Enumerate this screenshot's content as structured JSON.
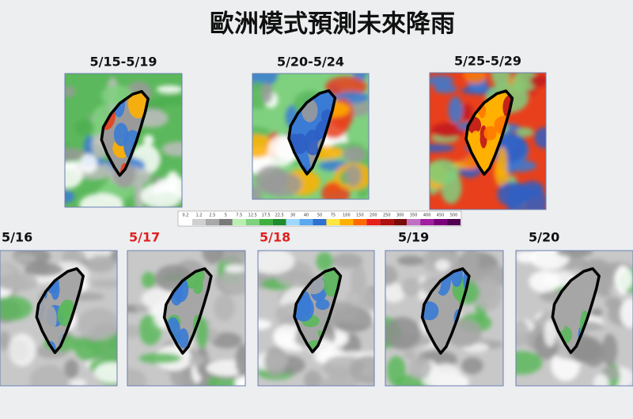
{
  "title": "歐洲模式預測未來降雨",
  "weekly_maps": [
    {
      "label": "5/15-5/19"
    },
    {
      "label": "5/20-5/24"
    },
    {
      "label": "5/25-5/29"
    }
  ],
  "colorbar": {
    "labels": [
      "0.2",
      "1.2",
      "2.5",
      "5",
      "7.5",
      "12.5",
      "17.5",
      "22.5",
      "30",
      "40",
      "50",
      "75",
      "100",
      "150",
      "200",
      "250",
      "300",
      "350",
      "400",
      "450",
      "500"
    ]
  },
  "daily_maps": [
    {
      "label": "5/16",
      "color": "#111111"
    },
    {
      "label": "5/17",
      "color": "#e02020"
    },
    {
      "label": "5/18",
      "color": "#e02020"
    },
    {
      "label": "5/19",
      "color": "#111111"
    },
    {
      "label": "5/20",
      "color": "#111111"
    }
  ]
}
